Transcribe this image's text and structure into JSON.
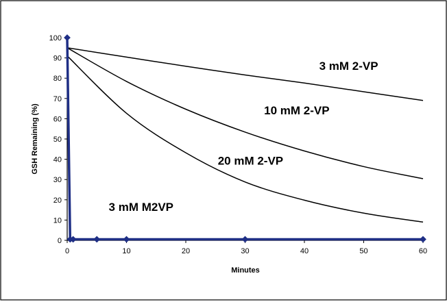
{
  "chart_data": {
    "type": "line",
    "xlabel": "Minutes",
    "ylabel": "GSH Remaining (%)",
    "xlim": [
      0,
      60
    ],
    "ylim": [
      0,
      100
    ],
    "x_ticks": [
      0,
      10,
      20,
      30,
      40,
      50,
      60
    ],
    "y_ticks": [
      0,
      10,
      20,
      30,
      40,
      50,
      60,
      70,
      80,
      90,
      100
    ],
    "grid": false,
    "legend": "none",
    "series": [
      {
        "name": "3 mM 2-VP",
        "x": [
          0,
          10,
          20,
          30,
          40,
          50,
          60
        ],
        "y": [
          95,
          90.4,
          85.9,
          81.6,
          77.6,
          73.3,
          69
        ],
        "color": "#000000",
        "markers": false
      },
      {
        "name": "10 mM 2-VP",
        "x": [
          0,
          10,
          20,
          30,
          40,
          50,
          60
        ],
        "y": [
          95,
          78.4,
          64.7,
          53.4,
          44.1,
          36.4,
          30.4
        ],
        "color": "#000000",
        "markers": false
      },
      {
        "name": "20 mM 2-VP",
        "x": [
          0,
          10,
          20,
          30,
          40,
          50,
          60
        ],
        "y": [
          91,
          62.7,
          43.2,
          28.8,
          19.8,
          13.4,
          9
        ],
        "color": "#000000",
        "markers": false
      },
      {
        "name": "3 mM M2VP",
        "x": [
          0,
          0.5,
          1,
          5,
          10,
          30,
          60
        ],
        "y": [
          100,
          0.5,
          0.5,
          0.5,
          0.5,
          0.5,
          0.5
        ],
        "color": "#1f2f86",
        "markers": true
      }
    ],
    "annotations": [
      {
        "text": "3 mM 2-VP",
        "x": 42.5,
        "y": 84.2
      },
      {
        "text": "10 mM 2-VP",
        "x": 33.2,
        "y": 62.2
      },
      {
        "text": "20 mM 2-VP",
        "x": 25.4,
        "y": 37.4
      },
      {
        "text": "3 mM M2VP",
        "x": 7.0,
        "y": 14.5
      }
    ]
  }
}
